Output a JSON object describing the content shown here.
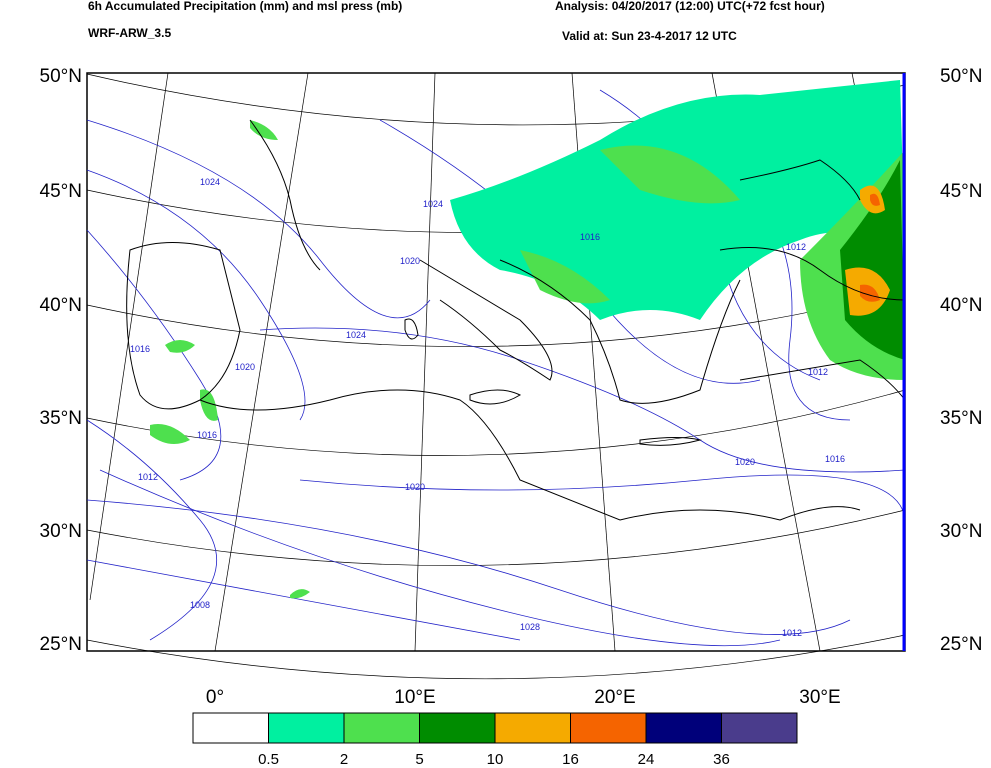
{
  "header": {
    "title": "6h Accumulated Precipitation (mm) and msl press (mb)",
    "model": "WRF-ARW_3.5",
    "analysis": "Analysis: 04/20/2017 (12:00) UTC(+72 fcst hour)",
    "valid": "Valid at: Sun 23-4-2017  12 UTC"
  },
  "latitude_labels": [
    "50°N",
    "45°N",
    "40°N",
    "35°N",
    "30°N",
    "25°N"
  ],
  "longitude_labels": [
    "0°",
    "10°E",
    "20°E",
    "30°E"
  ],
  "colorbar": {
    "colors": [
      "#ffffff",
      "#00f0a0",
      "#4ee04e",
      "#008c00",
      "#f5aa00",
      "#f56400",
      "#00007a",
      "#4a3c8c"
    ],
    "labels": [
      0.5,
      2,
      5,
      10,
      16,
      24,
      36
    ]
  },
  "isobar_labels": [
    "1024",
    "1024",
    "1020",
    "1016",
    "1024",
    "1020",
    "1020",
    "1016",
    "1012",
    "1008",
    "1028",
    "1016",
    "1012",
    "1012",
    "1020",
    "1016",
    "1012"
  ]
}
